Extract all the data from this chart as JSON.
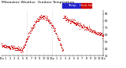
{
  "title_line1": "Milwaukee Weather  Outdoor Temperature",
  "legend_label_blue": "Temp",
  "legend_label_red": "Heat Idx",
  "background_color": "#ffffff",
  "dot_color": "#cc0000",
  "legend_blue": "#2222cc",
  "legend_red": "#cc0000",
  "ylim_min": 30,
  "ylim_max": 95,
  "xlim_min": 0,
  "xlim_max": 1440,
  "ytick_values": [
    30,
    40,
    50,
    60,
    70,
    80,
    90
  ],
  "xtick_values": [
    0,
    60,
    120,
    180,
    240,
    300,
    360,
    420,
    480,
    540,
    600,
    660,
    720,
    780,
    840,
    900,
    960,
    1020,
    1080,
    1140,
    1200,
    1260,
    1320,
    1380,
    1440
  ],
  "xtick_labels": [
    "12a",
    "1",
    "2",
    "3",
    "4",
    "5",
    "6",
    "7",
    "8",
    "9",
    "10",
    "11",
    "12p",
    "1",
    "2",
    "3",
    "4",
    "5",
    "6",
    "7",
    "8",
    "9",
    "10",
    "11",
    "12a"
  ],
  "ytick_labels": [
    "30",
    "40",
    "50",
    "60",
    "70",
    "80",
    "90"
  ],
  "title_fontsize": 3.2,
  "axis_fontsize": 2.5,
  "marker_size": 0.4,
  "vline_positions": [
    360,
    720
  ],
  "vline_color": "#aaaaaa",
  "seed": 42
}
